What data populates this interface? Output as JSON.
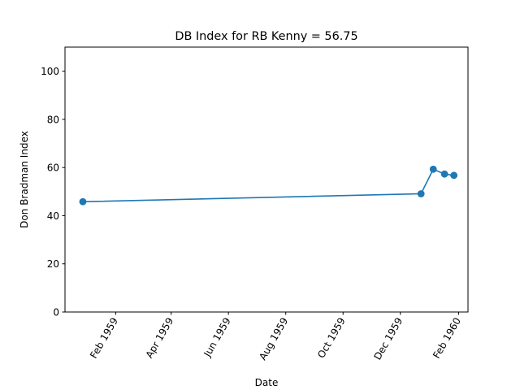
{
  "chart_data": {
    "type": "line",
    "title": "DB Index for RB Kenny = 56.75",
    "xlabel": "Date",
    "ylabel": "Don Bradman Index",
    "ylim": [
      0,
      110
    ],
    "xlim": [
      "1958-12-09",
      "1960-02-11"
    ],
    "yticks": [
      0,
      20,
      40,
      60,
      80,
      100
    ],
    "xticks": [
      {
        "date": "1959-02-01",
        "label": "Feb 1959"
      },
      {
        "date": "1959-04-01",
        "label": "Apr 1959"
      },
      {
        "date": "1959-06-01",
        "label": "Jun 1959"
      },
      {
        "date": "1959-08-01",
        "label": "Aug 1959"
      },
      {
        "date": "1959-10-01",
        "label": "Oct 1959"
      },
      {
        "date": "1959-12-01",
        "label": "Dec 1959"
      },
      {
        "date": "1960-02-01",
        "label": "Feb 1960"
      }
    ],
    "series": [
      {
        "color": "#1f77b4",
        "x": [
          "1958-12-28",
          "1959-12-23",
          "1960-01-05",
          "1960-01-17",
          "1960-01-27"
        ],
        "y": [
          45.8,
          49.1,
          59.3,
          57.3,
          56.75
        ]
      }
    ],
    "grid": false,
    "legend": "none"
  }
}
